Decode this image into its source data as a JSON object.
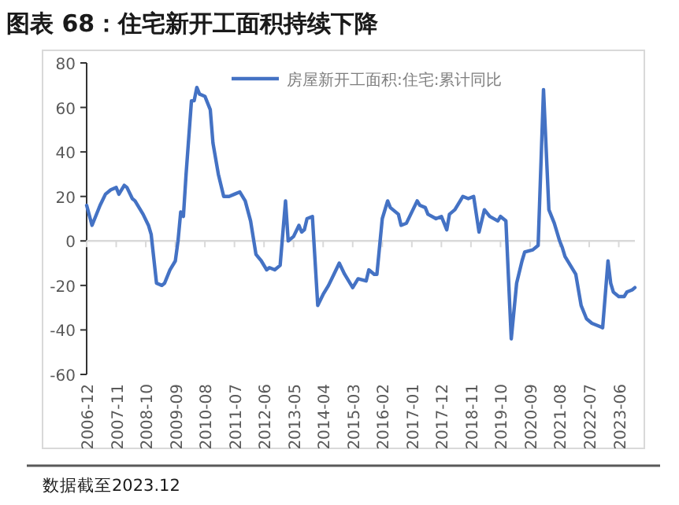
{
  "chart_data": {
    "type": "line",
    "title": "图表 68：住宅新开工面积持续下降",
    "annotations": [
      "数据截至2023.12"
    ],
    "x": [
      "2006-12",
      "2007-02",
      "2007-05",
      "2007-07",
      "2007-09",
      "2007-11",
      "2007-12",
      "2008-02",
      "2008-03",
      "2008-05",
      "2008-06",
      "2008-09",
      "2008-11",
      "2008-12",
      "2009-02",
      "2009-04",
      "2009-05",
      "2009-07",
      "2009-09",
      "2009-10",
      "2009-11",
      "2009-12",
      "2010-01",
      "2010-03",
      "2010-04",
      "2010-05",
      "2010-06",
      "2010-08",
      "2010-10",
      "2010-11",
      "2011-01",
      "2011-03",
      "2011-05",
      "2011-07",
      "2011-09",
      "2011-11",
      "2012-01",
      "2012-03",
      "2012-05",
      "2012-07",
      "2012-08",
      "2012-10",
      "2012-12",
      "2013-02",
      "2013-03",
      "2013-05",
      "2013-07",
      "2013-08",
      "2013-09",
      "2013-10",
      "2013-12",
      "2014-02",
      "2014-04",
      "2014-06",
      "2014-08",
      "2014-10",
      "2014-12",
      "2015-03",
      "2015-05",
      "2015-08",
      "2015-09",
      "2015-11",
      "2015-12",
      "2016-02",
      "2016-04",
      "2016-05",
      "2016-08",
      "2016-09",
      "2016-11",
      "2017-03",
      "2017-04",
      "2017-06",
      "2017-07",
      "2017-10",
      "2017-12",
      "2018-02",
      "2018-03",
      "2018-05",
      "2018-08",
      "2018-10",
      "2018-12",
      "2019-02",
      "2019-04",
      "2019-06",
      "2019-09",
      "2019-10",
      "2019-12",
      "2020-02",
      "2020-04",
      "2020-06",
      "2020-07",
      "2020-10",
      "2020-12",
      "2021-02",
      "2021-04",
      "2021-06",
      "2021-08",
      "2021-09",
      "2021-10",
      "2021-12",
      "2022-02",
      "2022-03",
      "2022-04",
      "2022-06",
      "2022-08",
      "2022-10",
      "2022-12",
      "2023-02",
      "2023-03",
      "2023-04",
      "2023-06",
      "2023-08",
      "2023-09",
      "2023-11",
      "2023-12"
    ],
    "series": [
      {
        "name": "房屋新开工面积:住宅:累计同比",
        "color": "#4472c4",
        "values": [
          16,
          7,
          16,
          21,
          23,
          24,
          21,
          25,
          24,
          19,
          18,
          12,
          7,
          3,
          -19,
          -20,
          -19,
          -13,
          -9,
          0,
          13,
          11,
          30,
          63,
          63,
          69,
          66,
          65,
          59,
          44,
          30,
          20,
          20,
          21,
          22,
          18,
          9,
          -6,
          -9,
          -13,
          -12,
          -13,
          -11,
          18,
          0,
          2,
          7,
          4,
          5,
          10,
          11,
          -29,
          -24,
          -20,
          -15,
          -10,
          -15,
          -21,
          -17,
          -18,
          -13,
          -15,
          -15,
          10,
          18,
          15,
          12,
          7,
          8,
          18,
          16,
          15,
          12,
          10,
          11,
          5,
          12,
          14,
          20,
          19,
          20,
          4,
          14,
          11,
          9,
          11,
          9,
          -44,
          -19,
          -9,
          -5,
          -4,
          -2,
          68,
          14,
          8,
          0,
          -3,
          -7,
          -11,
          -15,
          -22,
          -29,
          -35,
          -37,
          -38,
          -39,
          -9,
          -19,
          -23,
          -25,
          -25,
          -23,
          -22,
          -21
        ]
      }
    ],
    "xlim": [
      "2006-12",
      "2023-12"
    ],
    "xticks": [
      "2006-12",
      "2007-11",
      "2008-10",
      "2009-09",
      "2010-08",
      "2011-07",
      "2012-06",
      "2013-05",
      "2014-04",
      "2015-03",
      "2016-02",
      "2017-01",
      "2017-12",
      "2018-11",
      "2019-10",
      "2020-09",
      "2021-08",
      "2022-07",
      "2023-06"
    ],
    "ylim": [
      -60,
      80
    ],
    "yticks": [
      -60,
      -40,
      -20,
      0,
      20,
      40,
      60,
      80
    ],
    "legend": "top right"
  }
}
